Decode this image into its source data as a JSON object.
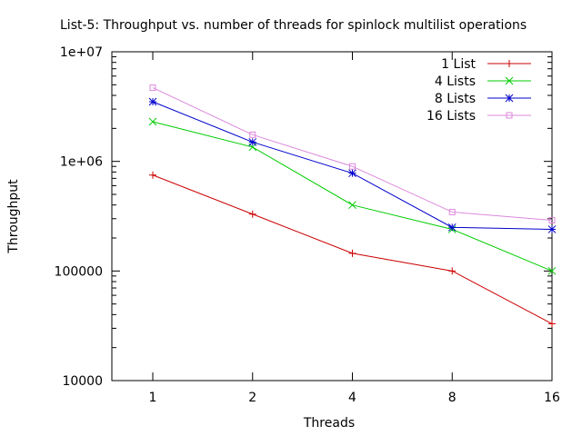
{
  "chart_data": {
    "type": "line",
    "title": "List-5: Throughput vs. number of threads for spinlock multilist operations",
    "xlabel": "Threads",
    "ylabel": "Throughput",
    "x_scale": "log2",
    "y_scale": "log10",
    "xlim": [
      1,
      16
    ],
    "ylim": [
      10000,
      10000000
    ],
    "x": [
      1,
      2,
      4,
      8,
      16
    ],
    "x_tick_labels": [
      "1",
      "2",
      "4",
      "8",
      "16"
    ],
    "y_ticks": [
      10000,
      100000,
      1000000,
      10000000
    ],
    "y_tick_labels": [
      "10000",
      "100000",
      "1e+06",
      "1e+07"
    ],
    "grid": false,
    "legend_position": "top-right",
    "series": [
      {
        "name": "1 List",
        "color": "#cc0000",
        "marker": "plus",
        "values": [
          750000,
          330000,
          145000,
          100000,
          33000
        ]
      },
      {
        "name": "4 Lists",
        "color": "#00cc00",
        "marker": "cross",
        "values": [
          2300000,
          1350000,
          400000,
          240000,
          100000
        ]
      },
      {
        "name": "8 Lists",
        "color": "#0000cc",
        "marker": "star",
        "values": [
          3500000,
          1500000,
          780000,
          250000,
          240000
        ]
      },
      {
        "name": "16 Lists",
        "color": "#dd88dd",
        "marker": "square",
        "values": [
          4700000,
          1750000,
          900000,
          345000,
          290000
        ]
      }
    ]
  }
}
